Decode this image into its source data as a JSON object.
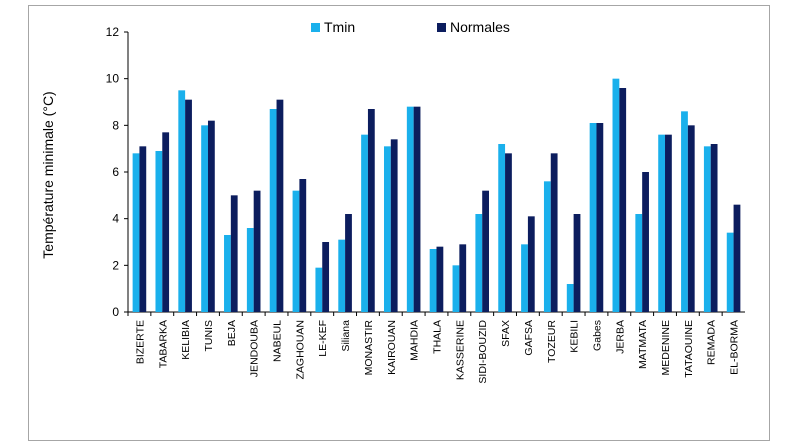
{
  "chart_data": {
    "type": "bar",
    "title": "",
    "xlabel": "",
    "ylabel": "Température minimale (°C)",
    "ylim": [
      0,
      12
    ],
    "yticks": [
      0,
      2,
      4,
      6,
      8,
      10,
      12
    ],
    "grid": false,
    "legend_position": "top-center",
    "categories": [
      "BIZERTE",
      "TABARKA",
      "KELIBIA",
      "TUNIS",
      "BEJA",
      "JENDOUBA",
      "NABEUL",
      "ZAGHOUAN",
      "LE-KEF",
      "Siliana",
      "MONASTIR",
      "KAIROUAN",
      "MAHDIA",
      "THALA",
      "KASSERINE",
      "SIDI-BOUZID",
      "SFAX",
      "GAFSA",
      "TOZEUR",
      "KEBILI",
      "Gabes",
      "JERBA",
      "MATMATA",
      "MEDENINE",
      "TATAOUINE",
      "REMADA",
      "EL-BORMA"
    ],
    "series": [
      {
        "name": "Tmin",
        "color": "#1ab0ec",
        "values": [
          6.8,
          6.9,
          9.5,
          8.0,
          3.3,
          3.6,
          8.7,
          5.2,
          1.9,
          3.1,
          7.6,
          7.1,
          8.8,
          2.7,
          2.0,
          4.2,
          7.2,
          2.9,
          5.6,
          1.2,
          8.1,
          10.0,
          4.2,
          7.6,
          8.6,
          7.1,
          3.4
        ]
      },
      {
        "name": "Normales",
        "color": "#0c1d5e",
        "values": [
          7.1,
          7.7,
          9.1,
          8.2,
          5.0,
          5.2,
          9.1,
          5.7,
          3.0,
          4.2,
          8.7,
          7.4,
          8.8,
          2.8,
          2.9,
          5.2,
          6.8,
          4.1,
          6.8,
          4.2,
          8.1,
          9.6,
          6.0,
          7.6,
          8.0,
          7.2,
          4.6
        ]
      }
    ]
  }
}
